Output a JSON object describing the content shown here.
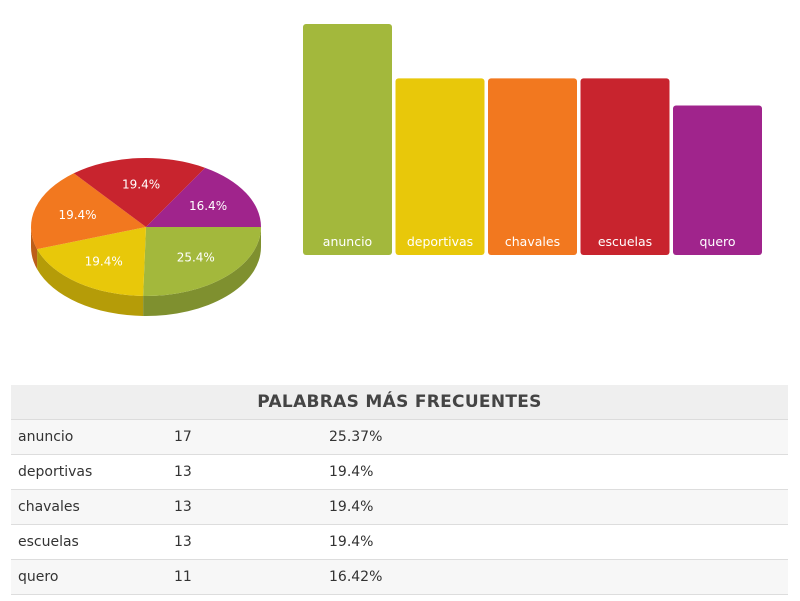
{
  "chart_data": [
    {
      "type": "pie",
      "categories": [
        "anuncio",
        "deportivas",
        "chavales",
        "escuelas",
        "quero"
      ],
      "values": [
        25.4,
        19.4,
        19.4,
        19.4,
        16.4
      ],
      "labels": [
        "25.4%",
        "19.4%",
        "19.4%",
        "19.4%",
        "16.4%"
      ],
      "colors": [
        "#a3b83c",
        "#e8c80a",
        "#f2781f",
        "#c8242e",
        "#a0248c"
      ],
      "title": ""
    },
    {
      "type": "bar",
      "categories": [
        "anuncio",
        "deportivas",
        "chavales",
        "escuelas",
        "quero"
      ],
      "values": [
        17,
        13,
        13,
        13,
        11
      ],
      "colors": [
        "#a3b83c",
        "#e8c80a",
        "#f2781f",
        "#c8242e",
        "#a0248c"
      ],
      "title": ""
    }
  ],
  "table": {
    "title": "PALABRAS MÁS FRECUENTES",
    "rows": [
      {
        "word": "anuncio",
        "count": "17",
        "percent": "25.37%"
      },
      {
        "word": "deportivas",
        "count": "13",
        "percent": "19.4%"
      },
      {
        "word": "chavales",
        "count": "13",
        "percent": "19.4%"
      },
      {
        "word": "escuelas",
        "count": "13",
        "percent": "19.4%"
      },
      {
        "word": "quero",
        "count": "11",
        "percent": "16.42%"
      }
    ]
  }
}
